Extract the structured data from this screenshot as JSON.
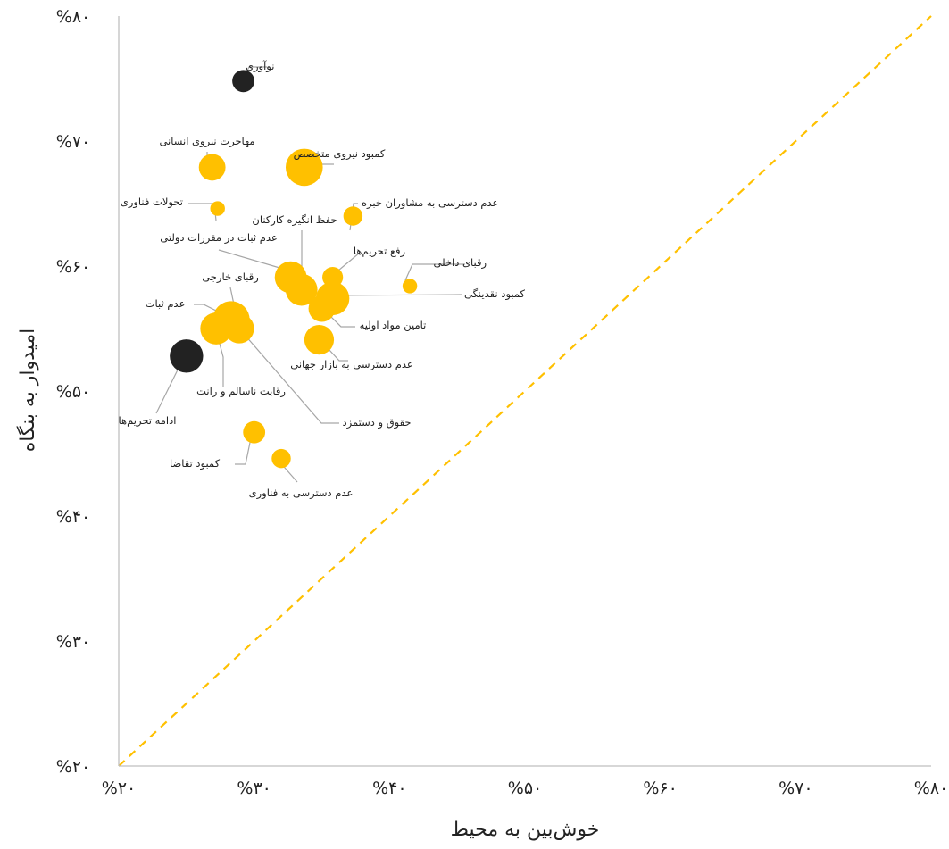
{
  "chart_data": {
    "type": "scatter",
    "xlabel": "خوش‌بین به محیط",
    "ylabel": "امیدوار به بنگاه",
    "xlim": [
      20,
      80
    ],
    "ylim": [
      20,
      80
    ],
    "x_ticks": [
      "%۲۰",
      "%۳۰",
      "%۴۰",
      "%۵۰",
      "%۶۰",
      "%۷۰",
      "%۸۰"
    ],
    "y_ticks": [
      "%۲۰",
      "%۳۰",
      "%۴۰",
      "%۵۰",
      "%۶۰",
      "%۷۰",
      "%۸۰"
    ],
    "reference_line": "y = x",
    "grid": false,
    "colors": {
      "accent": "#FFC000",
      "dark": "#222222",
      "axis": "#BFBFBF",
      "leader": "#A6A6A6"
    },
    "points": [
      {
        "label": "نوآوری",
        "x": 29.2,
        "y": 74.8,
        "size": 2,
        "color": "dark"
      },
      {
        "label": "مهاجرت نیروی انسانی",
        "x": 26.9,
        "y": 67.9,
        "size": 2.6,
        "color": "accent"
      },
      {
        "label": "کمبود نیروی متخصص",
        "x": 33.7,
        "y": 67.9,
        "size": 4,
        "color": "accent"
      },
      {
        "label": "تحولات فناوری",
        "x": 27.3,
        "y": 64.6,
        "size": 1,
        "color": "accent"
      },
      {
        "label": "عدم دسترسی به مشاوران خبره",
        "x": 37.3,
        "y": 64.0,
        "size": 1.6,
        "color": "accent"
      },
      {
        "label": "حفظ انگیزه کارکنان",
        "x": 33.5,
        "y": 58.1,
        "size": 3.3,
        "color": "accent"
      },
      {
        "label": "عدم ثبات در مقررات دولتی",
        "x": 32.7,
        "y": 59.1,
        "size": 3.3,
        "color": "accent"
      },
      {
        "label": "رفع تحریم‌ها",
        "x": 35.8,
        "y": 59.1,
        "size": 1.8,
        "color": "accent"
      },
      {
        "label": "رقبای داخلی",
        "x": 41.5,
        "y": 58.4,
        "size": 1,
        "color": "accent"
      },
      {
        "label": "کمبود نقدینگی",
        "x": 35.8,
        "y": 57.4,
        "size": 3.5,
        "color": "accent"
      },
      {
        "label": "تامین مواد اولیه",
        "x": 35.0,
        "y": 56.6,
        "size": 2.6,
        "color": "accent"
      },
      {
        "label": "رقبای خارجی",
        "x": 28.3,
        "y": 55.7,
        "size": 4,
        "color": "accent"
      },
      {
        "label": "عدم ثبات",
        "x": 27.2,
        "y": 55.0,
        "size": 3.3,
        "color": "accent"
      },
      {
        "label": "حقوق و دستمزد",
        "x": 28.9,
        "y": 55.0,
        "size": 3,
        "color": "accent"
      },
      {
        "label": "عدم دسترسی به بازار جهانی",
        "x": 34.8,
        "y": 54.1,
        "size": 3,
        "color": "accent"
      },
      {
        "label": "ادامه تحریم‌ها",
        "x": 25.0,
        "y": 52.8,
        "size": 3.5,
        "color": "dark"
      },
      {
        "label": "رقابت ناسالم و رانت",
        "x": 27.2,
        "y": 55.0,
        "size": 0,
        "color": "accent"
      },
      {
        "label": "کمبود تقاضا",
        "x": 30.0,
        "y": 46.7,
        "size": 2,
        "color": "accent"
      },
      {
        "label": "عدم دسترسی به فناوری",
        "x": 32.0,
        "y": 44.6,
        "size": 1.6,
        "color": "accent"
      }
    ]
  }
}
